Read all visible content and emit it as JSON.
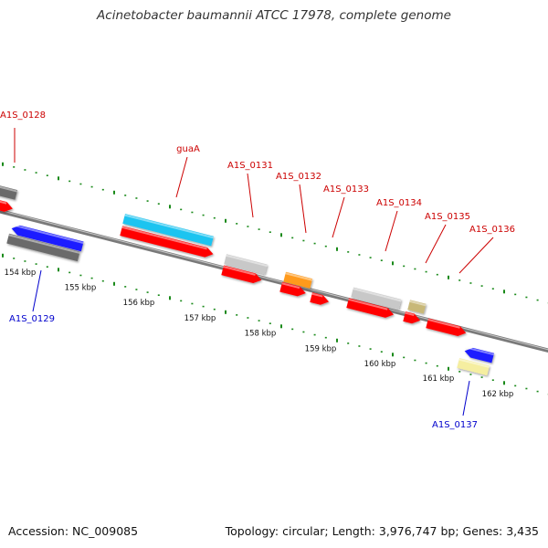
{
  "title": "Acinetobacter baumannii ATCC 17978, complete genome",
  "footer": {
    "accession": "Accession: NC_009085",
    "summary": "Topology: circular; Length: 3,976,747 bp; Genes: 3,435"
  },
  "colors": {
    "cds": "#ff0000",
    "gene_blue": "#1a1aff",
    "gene_cyan": "#1ec4f0",
    "gene_grey": "#6a6a6a",
    "gene_silver": "#c8c8c8",
    "gene_orange": "#ff9a1a",
    "gene_tan": "#c8b878",
    "gene_yellow": "#f5eea0",
    "label_forward": "#cc0000",
    "label_reverse": "#0000cc",
    "ticks": "#1a8a1a"
  },
  "ticks": [
    {
      "kbp": 154,
      "label": "154 kbp"
    },
    {
      "kbp": 155,
      "label": "155 kbp"
    },
    {
      "kbp": 156,
      "label": "156 kbp"
    },
    {
      "kbp": 157,
      "label": "157 kbp"
    },
    {
      "kbp": 158,
      "label": "158 kbp"
    },
    {
      "kbp": 159,
      "label": "159 kbp"
    },
    {
      "kbp": 160,
      "label": "160 kbp"
    },
    {
      "kbp": 161,
      "label": "161 kbp"
    },
    {
      "kbp": 162,
      "label": "162 kbp"
    }
  ],
  "gene_labels": [
    {
      "name": "A1S_0128",
      "strand": "forward"
    },
    {
      "name": "guaA",
      "strand": "forward"
    },
    {
      "name": "A1S_0131",
      "strand": "forward"
    },
    {
      "name": "A1S_0132",
      "strand": "forward"
    },
    {
      "name": "A1S_0133",
      "strand": "forward"
    },
    {
      "name": "A1S_0134",
      "strand": "forward"
    },
    {
      "name": "A1S_0135",
      "strand": "forward"
    },
    {
      "name": "A1S_0136",
      "strand": "forward"
    },
    {
      "name": "A1S_0129",
      "strand": "reverse"
    },
    {
      "name": "A1S_0137",
      "strand": "reverse"
    }
  ]
}
